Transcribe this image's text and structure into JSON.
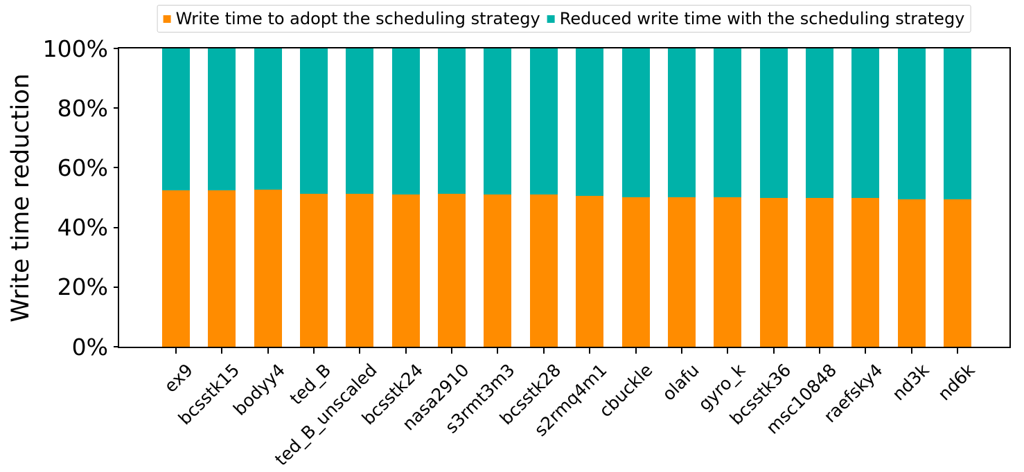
{
  "legend": {
    "items": [
      {
        "id": "adopt",
        "label": "Write time to adopt the scheduling strategy",
        "color": "#FF8C00"
      },
      {
        "id": "reduced",
        "label": "Reduced write time with the scheduling strategy",
        "color": "#00B2A9"
      }
    ]
  },
  "chart_data": {
    "type": "bar",
    "stacked": true,
    "title": "",
    "xlabel": "",
    "ylabel": "Write time reduction",
    "ylim": [
      0,
      100
    ],
    "grid": false,
    "legend_position": "upper center",
    "x_tick_rotation": 45,
    "bar_width_fraction": 0.6,
    "yticks": [
      "0%",
      "20%",
      "40%",
      "60%",
      "80%",
      "100%"
    ],
    "ytick_values": [
      0,
      20,
      40,
      60,
      80,
      100
    ],
    "categories": [
      "ex9",
      "bcsstk15",
      "bodyy4",
      "ted_B",
      "ted_B_unscaled",
      "bcsstk24",
      "nasa2910",
      "s3rmt3m3",
      "bcsstk28",
      "s2rmq4m1",
      "cbuckle",
      "olafu",
      "gyro_k",
      "bcsstk36",
      "msc10848",
      "raefsky4",
      "nd3k",
      "nd6k"
    ],
    "series": [
      {
        "name": "Write time to adopt the scheduling strategy",
        "color": "#FF8C00",
        "values": [
          52.5,
          52.5,
          52.6,
          51.3,
          51.3,
          51.0,
          51.2,
          51.0,
          51.0,
          50.6,
          50.1,
          50.1,
          50.1,
          49.9,
          49.9,
          49.9,
          49.4,
          49.4
        ]
      },
      {
        "name": "Reduced write time with the scheduling strategy",
        "color": "#00B2A9",
        "values": [
          47.5,
          47.5,
          47.4,
          48.7,
          48.7,
          49.0,
          48.8,
          49.0,
          49.0,
          49.4,
          49.9,
          49.9,
          49.9,
          50.1,
          50.1,
          50.1,
          50.6,
          50.6
        ]
      }
    ]
  }
}
